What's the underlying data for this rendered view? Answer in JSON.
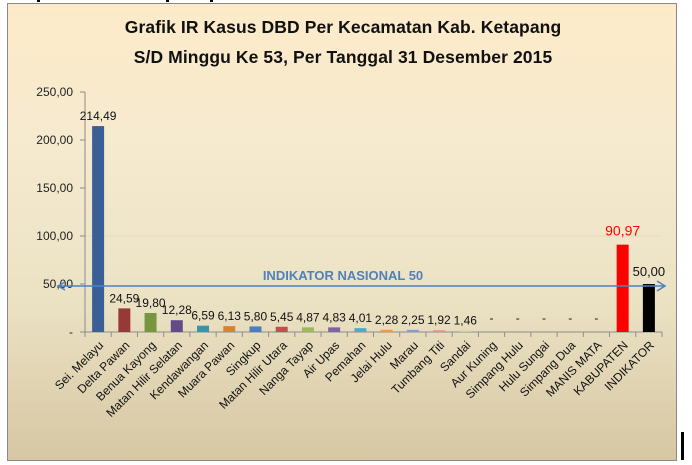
{
  "chart_data": {
    "type": "bar",
    "title": "Grafik IR Kasus DBD Per Kecamatan Kab. Ketapang",
    "subtitle": "S/D Minggu Ke 53, Per Tanggal 31 Desember 2015",
    "xlabel": "",
    "ylabel": "",
    "ylim": [
      0,
      250
    ],
    "yticks": [
      "-",
      "50,00",
      "100,00",
      "150,00",
      "200,00",
      "250,00"
    ],
    "grid": false,
    "legend": "none",
    "categories": [
      "Sei. Melayu",
      "Delta Pawan",
      "Benua Kayong",
      "Matan Hilir Selatan",
      "Kendawangan",
      "Muara Pawan",
      "Singkup",
      "Matan Hilir Utara",
      "Nanga Tayap",
      "Air Upas",
      "Pemahan",
      "Jelai Hulu",
      "Marau",
      "Tumbang Titi",
      "Sandai",
      "Aur Kuning",
      "Simpang Hulu",
      "Hulu Sungai",
      "Simpang Dua",
      "MANIS MATA",
      "KABUPATEN",
      "INDIKATOR"
    ],
    "values": [
      214.49,
      24.59,
      19.8,
      12.28,
      6.59,
      6.13,
      5.8,
      5.45,
      4.87,
      4.83,
      4.01,
      2.28,
      2.25,
      1.92,
      1.46,
      0,
      0,
      0,
      0,
      0,
      90.97,
      50.0
    ],
    "labels": [
      "214,49",
      "24,59",
      "19,80",
      "12,28",
      "6,59",
      "6,13",
      "5,80",
      "5,45",
      "4,87",
      "4,83",
      "4,01",
      "2,28",
      "2,25",
      "1,92",
      "1,46",
      "-",
      "-",
      "-",
      "-",
      "-",
      "90,97",
      "50,00"
    ],
    "colors": [
      "#3a5f96",
      "#963a38",
      "#779640",
      "#634b8a",
      "#3a93ad",
      "#d9832f",
      "#4a7ec2",
      "#c0504d",
      "#9bbb59",
      "#8064a2",
      "#4bacc6",
      "#f79646",
      "#7f9fd2",
      "#d99694",
      "#c3d69b",
      "#b3a2c7",
      "#93cddd",
      "#fac090",
      "#95b3d7",
      "#e6b9b8",
      "#ff0000",
      "#000000"
    ],
    "annotations": [
      {
        "text": "INDIKATOR NASIONAL 50",
        "type": "horizontal-arrow",
        "y": 50,
        "color": "#4f81bd"
      }
    ],
    "highlight_label_colors": {
      "KABUPATEN": "#ff0000"
    }
  }
}
